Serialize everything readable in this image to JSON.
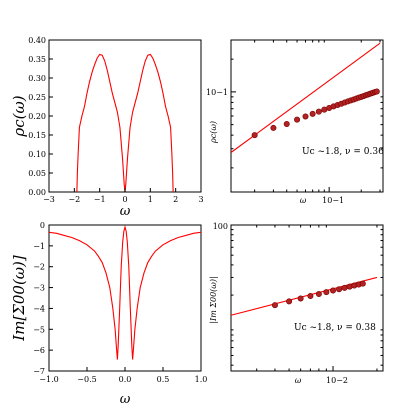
{
  "chart_data": [
    {
      "type": "line",
      "panel": "top-left",
      "ylabel": "ρc(ω)",
      "xlabel": "ω",
      "xlim": [
        -3,
        3
      ],
      "ylim": [
        0,
        0.4
      ],
      "xticks": [
        "−3",
        "−2",
        "−1",
        "0",
        "1",
        "2",
        "3"
      ],
      "yticks": [
        "0.00",
        "0.05",
        "0.10",
        "0.15",
        "0.20",
        "0.25",
        "0.30",
        "0.35",
        "0.40"
      ],
      "series": [
        {
          "color": "#ff0000",
          "x": [
            -1.9,
            -1.88,
            -1.85,
            -1.8,
            -1.7,
            -1.6,
            -1.5,
            -1.4,
            -1.3,
            -1.2,
            -1.1,
            -1.0,
            -0.9,
            -0.8,
            -0.7,
            -0.6,
            -0.5,
            -0.4,
            -0.3,
            -0.2,
            -0.1,
            -0.03,
            0.0,
            0.03,
            0.1,
            0.2,
            0.3,
            0.4,
            0.5,
            0.6,
            0.7,
            0.8,
            0.9,
            1.0,
            1.1,
            1.2,
            1.3,
            1.4,
            1.5,
            1.6,
            1.7,
            1.8,
            1.85,
            1.88,
            1.9
          ],
          "y": [
            0.0,
            0.05,
            0.1,
            0.17,
            0.2,
            0.225,
            0.26,
            0.29,
            0.315,
            0.335,
            0.352,
            0.362,
            0.36,
            0.345,
            0.32,
            0.29,
            0.26,
            0.235,
            0.21,
            0.17,
            0.09,
            0.02,
            0.0,
            0.02,
            0.09,
            0.17,
            0.21,
            0.235,
            0.26,
            0.29,
            0.32,
            0.345,
            0.36,
            0.362,
            0.352,
            0.335,
            0.315,
            0.29,
            0.26,
            0.225,
            0.2,
            0.17,
            0.1,
            0.05,
            0.0
          ]
        }
      ]
    },
    {
      "type": "line",
      "panel": "top-right",
      "scale": "log-log",
      "ylabel": "ρc(ω)",
      "xlabel": "ω",
      "xlim": [
        0.012,
        0.32
      ],
      "ylim": [
        0.012,
        0.3
      ],
      "yticks": [
        {
          "value": 0.1,
          "label": "10−1"
        }
      ],
      "xticks": [
        {
          "value": 0.1,
          "label": "10−1"
        }
      ],
      "annotation": "Uc ~1.8, ν = 0.36",
      "series": [
        {
          "color": "#ff0000",
          "marker": "circle",
          "marker_fill": "#b22222",
          "line_x": [
            0.012,
            0.3
          ],
          "line_y": [
            0.0277,
            0.2805
          ],
          "x": [
            0.02,
            0.03,
            0.04,
            0.05,
            0.06,
            0.07,
            0.08,
            0.09,
            0.1,
            0.11,
            0.12,
            0.13,
            0.14,
            0.15,
            0.16,
            0.17,
            0.18,
            0.19,
            0.2,
            0.21,
            0.22,
            0.23,
            0.24,
            0.25,
            0.26,
            0.27,
            0.28
          ],
          "y": [
            0.04,
            0.0466,
            0.0506,
            0.0555,
            0.0594,
            0.0628,
            0.0658,
            0.0686,
            0.0711,
            0.0735,
            0.0757,
            0.0778,
            0.0798,
            0.0817,
            0.0835,
            0.0852,
            0.0869,
            0.0885,
            0.09,
            0.0915,
            0.093,
            0.0944,
            0.0958,
            0.0971,
            0.0984,
            0.0997,
            0.1009
          ]
        }
      ]
    },
    {
      "type": "line",
      "panel": "bottom-left",
      "ylabel": "Im[Σ00(ω)]",
      "xlabel": "ω",
      "xlim": [
        -1.0,
        1.0
      ],
      "ylim": [
        -7,
        0
      ],
      "xticks": [
        "−1.0",
        "−0.5",
        "0.0",
        "0.5",
        "1.0"
      ],
      "yticks": [
        "0",
        "−1",
        "−2",
        "−3",
        "−4",
        "−5",
        "−6",
        "−7"
      ],
      "series": [
        {
          "color": "#ff0000",
          "x": [
            -1.0,
            -0.9,
            -0.8,
            -0.7,
            -0.6,
            -0.5,
            -0.4,
            -0.35,
            -0.3,
            -0.25,
            -0.2,
            -0.16,
            -0.13,
            -0.11,
            -0.1,
            -0.09,
            -0.07,
            -0.05,
            -0.03,
            -0.015,
            0.0,
            0.015,
            0.03,
            0.05,
            0.07,
            0.09,
            0.1,
            0.11,
            0.13,
            0.16,
            0.2,
            0.25,
            0.3,
            0.35,
            0.4,
            0.5,
            0.6,
            0.7,
            0.8,
            0.9,
            1.0
          ],
          "y": [
            -0.35,
            -0.4,
            -0.5,
            -0.6,
            -0.75,
            -0.95,
            -1.25,
            -1.5,
            -1.8,
            -2.3,
            -3.0,
            -4.0,
            -5.0,
            -6.0,
            -6.45,
            -5.8,
            -4.0,
            -2.0,
            -0.8,
            -0.3,
            -0.1,
            -0.3,
            -0.8,
            -2.0,
            -4.0,
            -5.8,
            -6.45,
            -6.0,
            -5.0,
            -4.0,
            -3.0,
            -2.3,
            -1.8,
            -1.5,
            -1.25,
            -0.95,
            -0.75,
            -0.6,
            -0.5,
            -0.4,
            -0.35
          ]
        }
      ]
    },
    {
      "type": "line",
      "panel": "bottom-right",
      "scale": "log-log",
      "ylabel": "|Im Σ00(ω)|",
      "xlabel": "ω",
      "xlim": [
        0.002,
        0.022
      ],
      "ylim": [
        0.035,
        1.0
      ],
      "yticks": [
        {
          "value": 1.0,
          "label": "100"
        }
      ],
      "xticks": [
        {
          "value": 0.01,
          "label": "10−2"
        }
      ],
      "annotation": "Uc ~1.8, ν = 0.38",
      "series": [
        {
          "color": "#ff0000",
          "marker": "circle",
          "marker_fill": "#b22222",
          "line_x": [
            0.002,
            0.02
          ],
          "line_y": [
            0.1259,
            0.3
          ]
        }
      ],
      "points_x": [
        0.004,
        0.005,
        0.006,
        0.007,
        0.008,
        0.009,
        0.01,
        0.011,
        0.012,
        0.013,
        0.014,
        0.015,
        0.016
      ],
      "points_y": [
        0.159,
        0.173,
        0.185,
        0.196,
        0.205,
        0.214,
        0.222,
        0.229,
        0.236,
        0.243,
        0.249,
        0.255,
        0.26
      ]
    }
  ]
}
